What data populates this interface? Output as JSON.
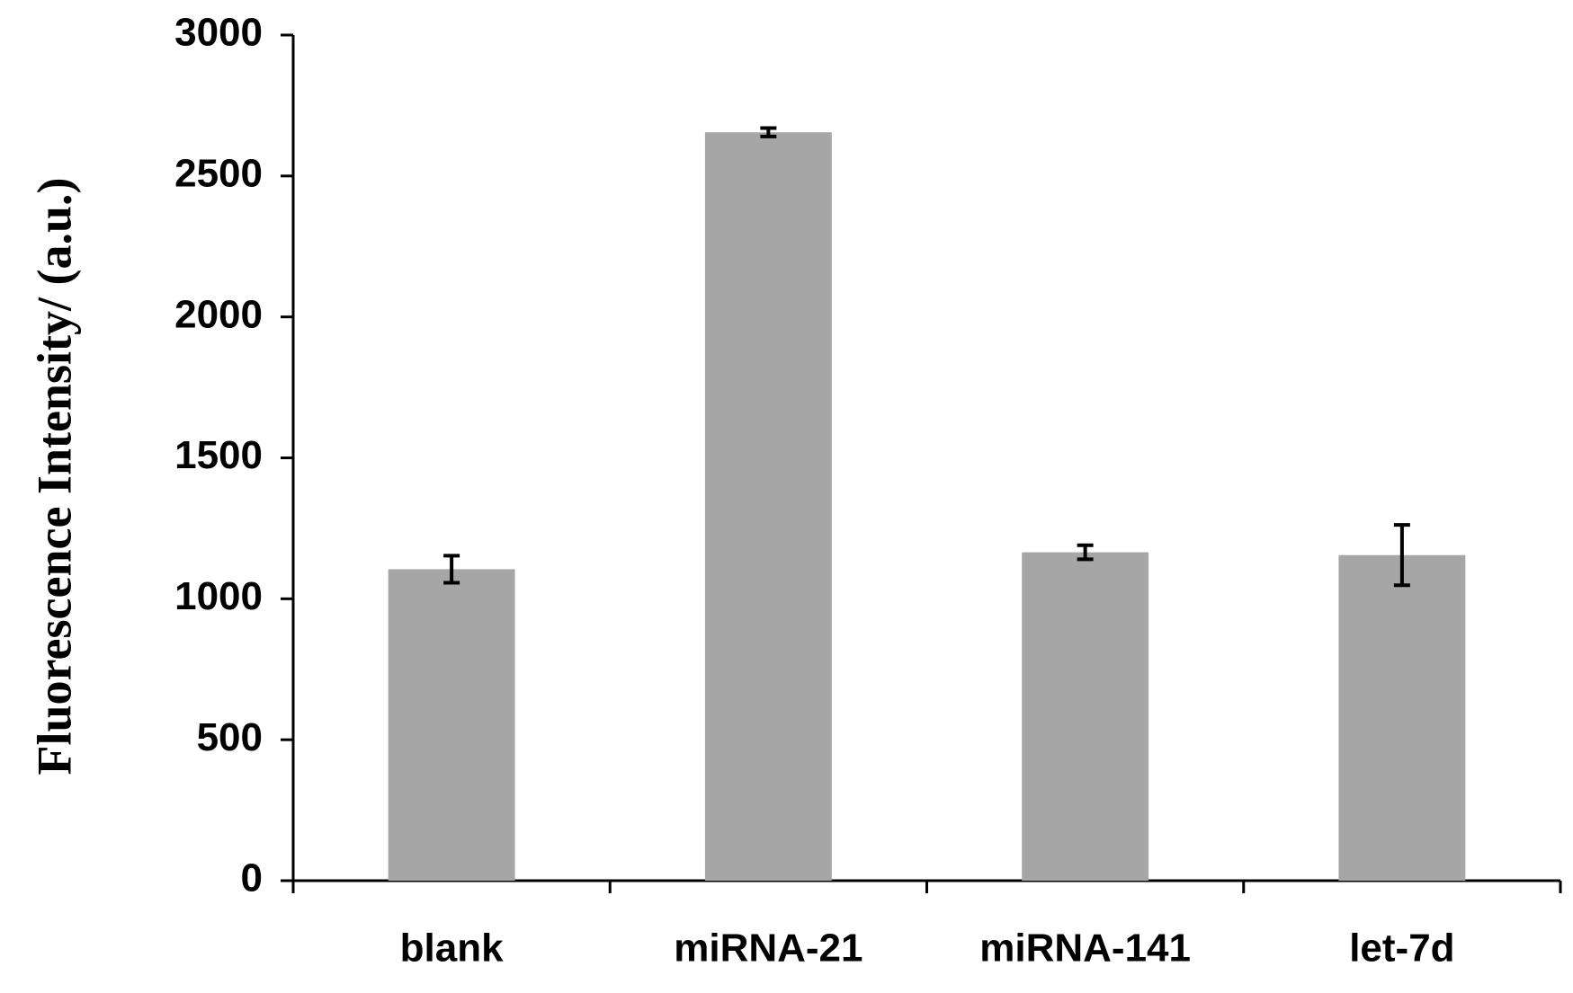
{
  "chart_data": {
    "type": "bar",
    "y_label": "Fluorescence Intensity/ (a.u.)",
    "categories": [
      "blank",
      "miRNA-21",
      "miRNA-141",
      "let-7d"
    ],
    "values": [
      1105,
      2655,
      1165,
      1155
    ],
    "errors": [
      48,
      15,
      25,
      107
    ],
    "color": "#a6a6a6",
    "ylim": [
      0,
      3000
    ],
    "yticks": [
      0,
      500,
      1000,
      1500,
      2000,
      2500,
      3000
    ],
    "grid": false
  }
}
